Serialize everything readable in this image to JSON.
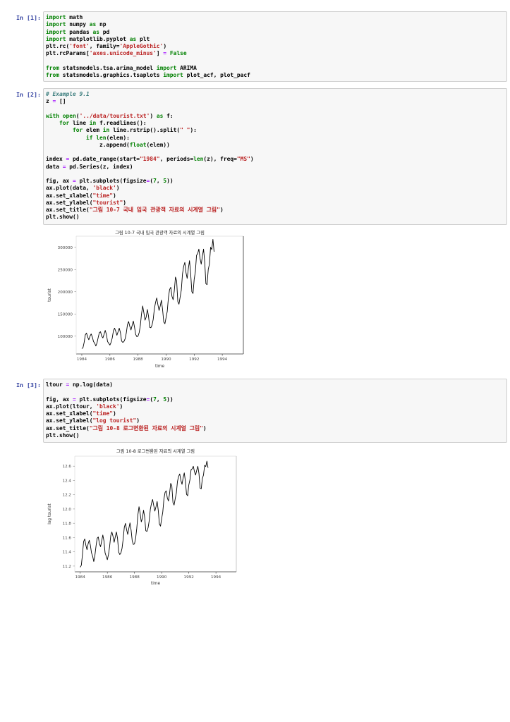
{
  "cells": [
    {
      "prompt": "In [1]:",
      "lines": [
        [
          [
            "kw",
            "import"
          ],
          [
            "plain",
            " math"
          ]
        ],
        [
          [
            "kw",
            "import"
          ],
          [
            "plain",
            " numpy "
          ],
          [
            "kw",
            "as"
          ],
          [
            "plain",
            " np"
          ]
        ],
        [
          [
            "kw",
            "import"
          ],
          [
            "plain",
            " pandas "
          ],
          [
            "kw",
            "as"
          ],
          [
            "plain",
            " pd"
          ]
        ],
        [
          [
            "kw",
            "import"
          ],
          [
            "plain",
            " matplotlib.pyplot "
          ],
          [
            "kw",
            "as"
          ],
          [
            "plain",
            " plt"
          ]
        ],
        [
          [
            "plain",
            "plt.rc("
          ],
          [
            "str",
            "'font'"
          ],
          [
            "plain",
            ", family="
          ],
          [
            "str",
            "'AppleGothic'"
          ],
          [
            "plain",
            ")"
          ]
        ],
        [
          [
            "plain",
            "plt.rcParams["
          ],
          [
            "str",
            "'axes.unicode_minus'"
          ],
          [
            "plain",
            "] "
          ],
          [
            "op",
            "="
          ],
          [
            "plain",
            " "
          ],
          [
            "kw",
            "False"
          ]
        ],
        [
          [
            "plain",
            ""
          ]
        ],
        [
          [
            "kw",
            "from"
          ],
          [
            "plain",
            " statsmodels.tsa.arima_model "
          ],
          [
            "kw",
            "import"
          ],
          [
            "plain",
            " ARIMA"
          ]
        ],
        [
          [
            "kw",
            "from"
          ],
          [
            "plain",
            " statsmodels.graphics.tsaplots "
          ],
          [
            "kw",
            "import"
          ],
          [
            "plain",
            " plot_acf, plot_pacf"
          ]
        ]
      ]
    },
    {
      "prompt": "In [2]:",
      "lines": [
        [
          [
            "cm",
            "# Example 9.1"
          ]
        ],
        [
          [
            "plain",
            "z "
          ],
          [
            "op",
            "="
          ],
          [
            "plain",
            " []"
          ]
        ],
        [
          [
            "plain",
            ""
          ]
        ],
        [
          [
            "kw",
            "with"
          ],
          [
            "plain",
            " "
          ],
          [
            "bi",
            "open"
          ],
          [
            "plain",
            "("
          ],
          [
            "str",
            "'../data/tourist.txt'"
          ],
          [
            "plain",
            ") "
          ],
          [
            "kw",
            "as"
          ],
          [
            "plain",
            " f:"
          ]
        ],
        [
          [
            "plain",
            "    "
          ],
          [
            "kw",
            "for"
          ],
          [
            "plain",
            " line "
          ],
          [
            "kw",
            "in"
          ],
          [
            "plain",
            " f.readlines():"
          ]
        ],
        [
          [
            "plain",
            "        "
          ],
          [
            "kw",
            "for"
          ],
          [
            "plain",
            " elem "
          ],
          [
            "kw",
            "in"
          ],
          [
            "plain",
            " line.rstrip().split("
          ],
          [
            "str",
            "\" \""
          ],
          [
            "plain",
            "):"
          ]
        ],
        [
          [
            "plain",
            "            "
          ],
          [
            "kw",
            "if"
          ],
          [
            "plain",
            " "
          ],
          [
            "bi",
            "len"
          ],
          [
            "plain",
            "(elem):"
          ]
        ],
        [
          [
            "plain",
            "                z.append("
          ],
          [
            "bi",
            "float"
          ],
          [
            "plain",
            "(elem))"
          ]
        ],
        [
          [
            "plain",
            ""
          ]
        ],
        [
          [
            "plain",
            "index "
          ],
          [
            "op",
            "="
          ],
          [
            "plain",
            " pd.date_range(start="
          ],
          [
            "str",
            "\"1984\""
          ],
          [
            "plain",
            ", periods="
          ],
          [
            "bi",
            "len"
          ],
          [
            "plain",
            "(z), freq="
          ],
          [
            "str",
            "\"MS\""
          ],
          [
            "plain",
            ")"
          ]
        ],
        [
          [
            "plain",
            "data "
          ],
          [
            "op",
            "="
          ],
          [
            "plain",
            " pd.Series(z, index)"
          ]
        ],
        [
          [
            "plain",
            ""
          ]
        ],
        [
          [
            "plain",
            "fig, ax "
          ],
          [
            "op",
            "="
          ],
          [
            "plain",
            " plt.subplots(figsize"
          ],
          [
            "op",
            "="
          ],
          [
            "plain",
            "("
          ],
          [
            "num",
            "7"
          ],
          [
            "plain",
            ", "
          ],
          [
            "num",
            "5"
          ],
          [
            "plain",
            "))"
          ]
        ],
        [
          [
            "plain",
            "ax.plot(data, "
          ],
          [
            "str",
            "'black'"
          ],
          [
            "plain",
            ")"
          ]
        ],
        [
          [
            "plain",
            "ax.set_xlabel("
          ],
          [
            "str",
            "\"time\""
          ],
          [
            "plain",
            ")"
          ]
        ],
        [
          [
            "plain",
            "ax.set_ylabel("
          ],
          [
            "str",
            "\"tourist\""
          ],
          [
            "plain",
            ")"
          ]
        ],
        [
          [
            "plain",
            "ax.set_title("
          ],
          [
            "str",
            "\"그림 10-7 국내 입국 관광객 자료의 시계열 그림\""
          ],
          [
            "plain",
            ")"
          ]
        ],
        [
          [
            "plain",
            "plt.show()"
          ]
        ]
      ]
    },
    {
      "prompt": "In [3]:",
      "lines": [
        [
          [
            "plain",
            "ltour "
          ],
          [
            "op",
            "="
          ],
          [
            "plain",
            " np.log(data)"
          ]
        ],
        [
          [
            "plain",
            ""
          ]
        ],
        [
          [
            "plain",
            "fig, ax "
          ],
          [
            "op",
            "="
          ],
          [
            "plain",
            " plt.subplots(figsize"
          ],
          [
            "op",
            "="
          ],
          [
            "plain",
            "("
          ],
          [
            "num",
            "7"
          ],
          [
            "plain",
            ", "
          ],
          [
            "num",
            "5"
          ],
          [
            "plain",
            "))"
          ]
        ],
        [
          [
            "plain",
            "ax.plot(ltour, "
          ],
          [
            "str",
            "'black'"
          ],
          [
            "plain",
            ")"
          ]
        ],
        [
          [
            "plain",
            "ax.set_xlabel("
          ],
          [
            "str",
            "\"time\""
          ],
          [
            "plain",
            ")"
          ]
        ],
        [
          [
            "plain",
            "ax.set_ylabel("
          ],
          [
            "str",
            "\"log tourist\""
          ],
          [
            "plain",
            ")"
          ]
        ],
        [
          [
            "plain",
            "ax.set_title("
          ],
          [
            "str",
            "\"그림 10-8 로그변환된 자료의 시계열 그림\""
          ],
          [
            "plain",
            ")"
          ]
        ],
        [
          [
            "plain",
            "plt.show()"
          ]
        ]
      ]
    }
  ],
  "colors": {
    "keyword": "#008000",
    "string": "#ba2121",
    "comment": "#408080",
    "operator": "#aa22ff",
    "prompt": "#303f9f"
  },
  "chart_data": [
    {
      "type": "line",
      "title": "그림 10-7 국내 입국 관광객 자료의 시계열 그림",
      "xlabel": "time",
      "ylabel": "tourist",
      "x_ticks": [
        "1984",
        "1986",
        "1988",
        "1990",
        "1992",
        "1994"
      ],
      "y_ticks": [
        "100000",
        "150000",
        "200000",
        "250000",
        "300000"
      ],
      "ylim": [
        60000,
        325000
      ],
      "xlim": [
        1983.6,
        1995.5
      ],
      "grid": false,
      "series": [
        {
          "x_start": "1984-01",
          "freq": "monthly",
          "values": [
            72000,
            74000,
            86000,
            103000,
            107000,
            98000,
            92000,
            100000,
            105000,
            98000,
            88000,
            84000,
            78000,
            85000,
            97000,
            108000,
            110000,
            100000,
            96000,
            104000,
            113000,
            104000,
            88000,
            84000,
            80000,
            86000,
            96000,
            112000,
            118000,
            111000,
            102000,
            110000,
            118000,
            108000,
            89000,
            86000,
            88000,
            94000,
            107000,
            126000,
            133000,
            122000,
            114000,
            124000,
            134000,
            121000,
            104000,
            99000,
            100000,
            108000,
            124000,
            150000,
            168000,
            153000,
            136000,
            143000,
            160000,
            145000,
            120000,
            119000,
            125000,
            138000,
            162000,
            176000,
            186000,
            171000,
            158000,
            168000,
            181000,
            160000,
            132000,
            128000,
            142000,
            156000,
            187000,
            205000,
            210000,
            190000,
            182000,
            202000,
            233000,
            225000,
            178000,
            172000,
            188000,
            204000,
            240000,
            257000,
            266000,
            243000,
            230000,
            252000,
            270000,
            240000,
            200000,
            196000,
            228000,
            245000,
            282000,
            286000,
            296000,
            275000,
            262000,
            280000,
            296000,
            267000,
            218000,
            216000,
            250000,
            262000,
            300000,
            295000,
            318000,
            290000
          ]
        }
      ]
    },
    {
      "type": "line",
      "title": "그림 10-8 로그변환된 자료의 시계열 그림",
      "xlabel": "time",
      "ylabel": "log tourist",
      "x_ticks": [
        "1984",
        "1986",
        "1988",
        "1990",
        "1992",
        "1994"
      ],
      "y_ticks": [
        "11.2",
        "11.4",
        "11.6",
        "11.8",
        "12.0",
        "12.2",
        "12.4",
        "12.6"
      ],
      "ylim": [
        11.12,
        12.74
      ],
      "xlim": [
        1983.6,
        1995.5
      ],
      "grid": false,
      "series": [
        {
          "x_start": "1984-01",
          "freq": "monthly",
          "transform": "log",
          "source": 0
        }
      ]
    }
  ]
}
